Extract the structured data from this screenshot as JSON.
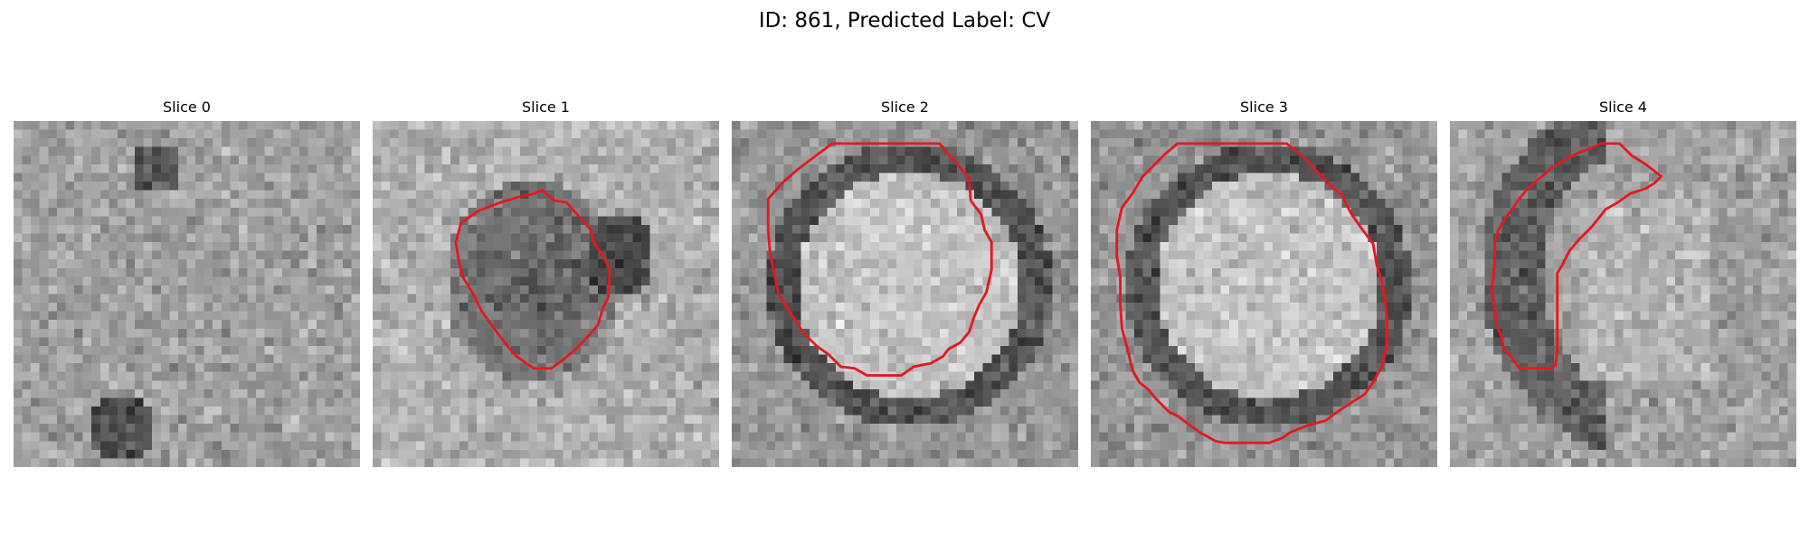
{
  "figure": {
    "title": "ID: 861, Predicted Label: CV",
    "colormap": "gray",
    "contour_color": "#e31a1c",
    "panels": [
      {
        "title": "Slice 0",
        "pattern": "noise",
        "contour": []
      },
      {
        "title": "Slice 1",
        "pattern": "blob",
        "contour": [
          [
            18.6,
            8.4
          ],
          [
            19.6,
            8.0
          ],
          [
            21.0,
            9.2
          ],
          [
            22.4,
            9.4
          ],
          [
            25.2,
            12.6
          ],
          [
            25.6,
            14.2
          ],
          [
            26.6,
            15.6
          ],
          [
            27.4,
            17.2
          ],
          [
            27.2,
            20.4
          ],
          [
            26.6,
            21.6
          ],
          [
            26.0,
            23.6
          ],
          [
            24.4,
            25.4
          ],
          [
            23.2,
            26.6
          ],
          [
            22.0,
            27.6
          ],
          [
            20.6,
            28.6
          ],
          [
            18.6,
            28.6
          ],
          [
            16.6,
            27.2
          ],
          [
            15.4,
            25.8
          ],
          [
            14.2,
            24.2
          ],
          [
            12.6,
            22.0
          ],
          [
            11.6,
            20.0
          ],
          [
            10.4,
            18.0
          ],
          [
            10.0,
            16.4
          ],
          [
            9.6,
            14.0
          ],
          [
            10.2,
            11.8
          ],
          [
            12.2,
            10.4
          ],
          [
            14.8,
            9.4
          ],
          [
            16.8,
            8.8
          ]
        ]
      },
      {
        "title": "Slice 2",
        "pattern": "ring",
        "contour": [
          [
            11.6,
            2.6
          ],
          [
            24.0,
            2.6
          ],
          [
            27.4,
            6.6
          ],
          [
            27.6,
            9.2
          ],
          [
            28.8,
            10.8
          ],
          [
            29.2,
            12.6
          ],
          [
            30.0,
            14.0
          ],
          [
            30.0,
            17.2
          ],
          [
            29.4,
            19.8
          ],
          [
            28.6,
            21.2
          ],
          [
            28.0,
            22.6
          ],
          [
            27.4,
            24.4
          ],
          [
            26.4,
            25.6
          ],
          [
            25.0,
            26.4
          ],
          [
            24.4,
            27.2
          ],
          [
            23.0,
            28.0
          ],
          [
            21.0,
            28.4
          ],
          [
            19.6,
            29.4
          ],
          [
            17.4,
            29.4
          ],
          [
            15.6,
            29.4
          ],
          [
            14.2,
            28.6
          ],
          [
            12.6,
            28.4
          ],
          [
            11.2,
            27.0
          ],
          [
            9.8,
            26.0
          ],
          [
            8.2,
            24.4
          ],
          [
            7.2,
            22.8
          ],
          [
            6.4,
            21.6
          ],
          [
            5.4,
            20.0
          ],
          [
            5.0,
            18.0
          ],
          [
            4.4,
            15.0
          ],
          [
            4.2,
            12.4
          ],
          [
            4.2,
            9.0
          ],
          [
            6.0,
            7.0
          ],
          [
            7.6,
            5.6
          ]
        ]
      },
      {
        "title": "Slice 3",
        "pattern": "ring",
        "contour": [
          [
            10.0,
            2.6
          ],
          [
            22.6,
            2.6
          ],
          [
            24.4,
            4.0
          ],
          [
            27.4,
            7.2
          ],
          [
            29.0,
            8.6
          ],
          [
            30.0,
            10.6
          ],
          [
            31.4,
            12.6
          ],
          [
            32.6,
            14.2
          ],
          [
            33.0,
            16.6
          ],
          [
            33.6,
            18.6
          ],
          [
            34.0,
            20.8
          ],
          [
            34.2,
            23.2
          ],
          [
            34.2,
            26.0
          ],
          [
            33.6,
            28.4
          ],
          [
            32.6,
            30.2
          ],
          [
            31.6,
            31.6
          ],
          [
            30.0,
            32.6
          ],
          [
            28.2,
            33.8
          ],
          [
            27.2,
            34.6
          ],
          [
            25.0,
            35.2
          ],
          [
            23.0,
            36.0
          ],
          [
            22.2,
            36.6
          ],
          [
            20.6,
            37.2
          ],
          [
            19.6,
            37.2
          ],
          [
            17.0,
            37.2
          ],
          [
            15.4,
            37.2
          ],
          [
            14.4,
            37.0
          ],
          [
            12.6,
            36.0
          ],
          [
            11.2,
            35.0
          ],
          [
            10.2,
            34.2
          ],
          [
            9.0,
            33.6
          ],
          [
            7.6,
            32.2
          ],
          [
            6.6,
            31.0
          ],
          [
            5.6,
            30.2
          ],
          [
            4.8,
            28.8
          ],
          [
            4.2,
            26.2
          ],
          [
            3.6,
            24.0
          ],
          [
            3.4,
            21.2
          ],
          [
            3.4,
            18.0
          ],
          [
            3.0,
            15.6
          ],
          [
            3.0,
            12.6
          ],
          [
            3.6,
            10.0
          ],
          [
            4.8,
            8.4
          ],
          [
            6.0,
            6.4
          ],
          [
            7.4,
            5.0
          ],
          [
            8.6,
            3.8
          ]
        ]
      },
      {
        "title": "Slice 4",
        "pattern": "crescent",
        "contour": [
          [
            17.4,
            2.6
          ],
          [
            19.6,
            2.6
          ],
          [
            21.0,
            4.0
          ],
          [
            22.6,
            5.0
          ],
          [
            24.4,
            6.4
          ],
          [
            23.6,
            7.2
          ],
          [
            22.6,
            7.8
          ],
          [
            20.8,
            8.4
          ],
          [
            19.4,
            9.4
          ],
          [
            18.0,
            10.2
          ],
          [
            16.4,
            12.2
          ],
          [
            15.0,
            13.6
          ],
          [
            13.8,
            15.0
          ],
          [
            13.0,
            16.6
          ],
          [
            12.4,
            17.6
          ],
          [
            12.4,
            20.8
          ],
          [
            12.4,
            23.8
          ],
          [
            12.4,
            26.4
          ],
          [
            12.2,
            28.2
          ],
          [
            11.6,
            28.6
          ],
          [
            9.2,
            28.6
          ],
          [
            8.0,
            28.6
          ],
          [
            7.2,
            27.4
          ],
          [
            6.2,
            26.4
          ],
          [
            6.0,
            25.0
          ],
          [
            5.4,
            23.6
          ],
          [
            5.2,
            22.0
          ],
          [
            5.0,
            20.6
          ],
          [
            4.8,
            19.6
          ],
          [
            5.0,
            18.2
          ],
          [
            5.2,
            15.6
          ],
          [
            5.2,
            14.0
          ],
          [
            5.6,
            12.6
          ],
          [
            6.4,
            11.2
          ],
          [
            7.2,
            10.2
          ],
          [
            8.0,
            9.0
          ],
          [
            9.0,
            7.8
          ],
          [
            10.4,
            6.6
          ],
          [
            11.8,
            5.4
          ],
          [
            13.4,
            4.4
          ],
          [
            15.0,
            3.6
          ],
          [
            16.2,
            3.2
          ]
        ]
      }
    ]
  }
}
